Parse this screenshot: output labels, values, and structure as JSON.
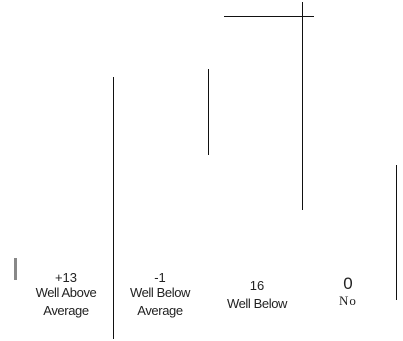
{
  "columns": [
    {
      "value": "+13",
      "label_line1": "Well Above",
      "label_line2": "Average"
    },
    {
      "value": "-1",
      "label_line1": "Well Below",
      "label_line2": "Average"
    },
    {
      "value": "16",
      "label_line1": "Well Below",
      "label_line2": ""
    },
    {
      "value": "0",
      "label_line1": "No",
      "label_line2": ""
    }
  ]
}
